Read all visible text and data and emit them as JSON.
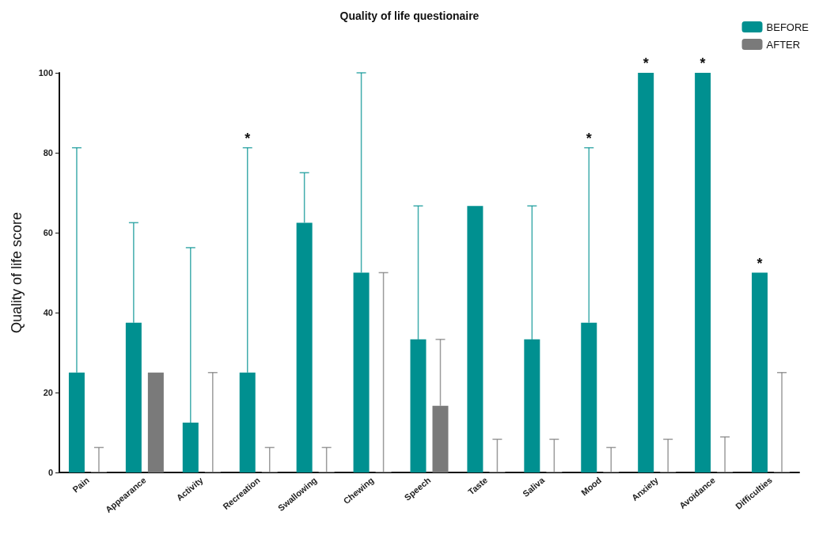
{
  "chart_data": {
    "type": "bar",
    "title": "Quality of life questionaire",
    "ylabel": "Quality of life score",
    "categories": [
      "Pain",
      "Appearance",
      "Activity",
      "Recreation",
      "Swallowing",
      "Chewing",
      "Speech",
      "Taste",
      "Saliva",
      "Mood",
      "Anxiety",
      "Avoidance",
      "Difficulties"
    ],
    "series": [
      {
        "name": "BEFORE",
        "color": "#009090",
        "values": [
          25,
          37.5,
          12.5,
          25,
          62.5,
          50,
          33.3,
          66.7,
          33.3,
          37.5,
          100,
          100,
          50
        ],
        "value_labels": [
          null,
          null,
          null,
          null,
          null,
          null,
          null,
          null,
          null,
          null,
          "*",
          "*",
          "*"
        ],
        "errors": [
          [
            25,
            81.25
          ],
          [
            37.5,
            62.5
          ],
          [
            12.5,
            56.25
          ],
          [
            25,
            81.25
          ],
          [
            62.5,
            75
          ],
          [
            50,
            100
          ],
          [
            33.3,
            66.7
          ],
          null,
          [
            33.3,
            66.7
          ],
          [
            37.5,
            81.25
          ],
          null,
          null,
          null
        ]
      },
      {
        "name": "AFTER",
        "color": "#7a7a7a",
        "values": [
          0,
          25,
          0,
          0,
          0,
          0,
          16.7,
          0,
          0,
          0,
          0,
          0,
          0
        ],
        "errors": [
          [
            0,
            6.25
          ],
          null,
          [
            0,
            25
          ],
          [
            0,
            6.25
          ],
          [
            0,
            6.25
          ],
          [
            0,
            50
          ],
          [
            16.7,
            33.3
          ],
          [
            0,
            8.3
          ],
          [
            0,
            8.3
          ],
          [
            0,
            6.25
          ],
          [
            0,
            8.3
          ],
          [
            0,
            8.9
          ],
          [
            0,
            25
          ]
        ]
      }
    ],
    "ylim": [
      0,
      100
    ],
    "yticks": [
      0,
      20,
      40,
      60,
      80,
      100
    ],
    "grid": false,
    "legend": "top right",
    "annotations": [
      {
        "text": "*",
        "x": "Recreation",
        "y": 81.25
      },
      {
        "text": "*",
        "x": "Mood",
        "y": 81.25
      }
    ]
  }
}
